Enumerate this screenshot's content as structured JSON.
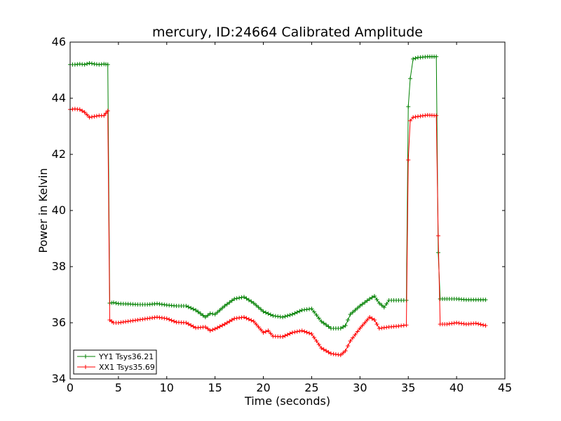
{
  "chart_data": {
    "type": "line",
    "title": "mercury, ID:24664 Calibrated Amplitude",
    "xlabel": "Time (seconds)",
    "ylabel": "Power in Kelvin",
    "xlim": [
      0,
      45
    ],
    "ylim": [
      34,
      46
    ],
    "xticks": [
      "0",
      "5",
      "10",
      "15",
      "20",
      "25",
      "30",
      "35",
      "40",
      "45"
    ],
    "yticks": [
      "34",
      "36",
      "38",
      "40",
      "42",
      "44",
      "46"
    ],
    "grid": false,
    "legend_position": "lower-left",
    "series": [
      {
        "name": "YY1 Tsys36.21",
        "color": "#008000",
        "points": [
          [
            0,
            45.2
          ],
          [
            0.5,
            45.2
          ],
          [
            1,
            45.22
          ],
          [
            1.5,
            45.2
          ],
          [
            2,
            45.25
          ],
          [
            2.5,
            45.22
          ],
          [
            3,
            45.2
          ],
          [
            3.5,
            45.22
          ],
          [
            3.9,
            45.2
          ],
          [
            4.1,
            36.7
          ],
          [
            4.5,
            36.72
          ],
          [
            5,
            36.68
          ],
          [
            6,
            36.67
          ],
          [
            7,
            36.65
          ],
          [
            8,
            36.65
          ],
          [
            9,
            36.68
          ],
          [
            10,
            36.63
          ],
          [
            11,
            36.6
          ],
          [
            12,
            36.6
          ],
          [
            13,
            36.45
          ],
          [
            14,
            36.2
          ],
          [
            14.5,
            36.33
          ],
          [
            15,
            36.3
          ],
          [
            16,
            36.6
          ],
          [
            17,
            36.85
          ],
          [
            18,
            36.92
          ],
          [
            19,
            36.7
          ],
          [
            20,
            36.4
          ],
          [
            21,
            36.25
          ],
          [
            22,
            36.2
          ],
          [
            23,
            36.3
          ],
          [
            24,
            36.45
          ],
          [
            25,
            36.5
          ],
          [
            26,
            36.05
          ],
          [
            27,
            35.8
          ],
          [
            28,
            35.8
          ],
          [
            28.5,
            35.9
          ],
          [
            29,
            36.3
          ],
          [
            30,
            36.6
          ],
          [
            31,
            36.85
          ],
          [
            31.5,
            36.95
          ],
          [
            32,
            36.7
          ],
          [
            32.5,
            36.55
          ],
          [
            33,
            36.8
          ],
          [
            34,
            36.8
          ],
          [
            34.8,
            36.8
          ],
          [
            35,
            43.7
          ],
          [
            35.2,
            44.7
          ],
          [
            35.5,
            45.4
          ],
          [
            36,
            45.45
          ],
          [
            37,
            45.48
          ],
          [
            37.9,
            45.48
          ],
          [
            38.1,
            38.5
          ],
          [
            38.3,
            36.85
          ],
          [
            39,
            36.85
          ],
          [
            40,
            36.85
          ],
          [
            41,
            36.82
          ],
          [
            42,
            36.82
          ],
          [
            43,
            36.82
          ]
        ]
      },
      {
        "name": "XX1 Tsys35.69",
        "color": "#ff0000",
        "points": [
          [
            0,
            43.6
          ],
          [
            0.5,
            43.62
          ],
          [
            1,
            43.6
          ],
          [
            1.5,
            43.5
          ],
          [
            2,
            43.32
          ],
          [
            2.5,
            43.35
          ],
          [
            3,
            43.38
          ],
          [
            3.5,
            43.38
          ],
          [
            3.9,
            43.55
          ],
          [
            4.1,
            36.1
          ],
          [
            4.5,
            36.0
          ],
          [
            5,
            36.0
          ],
          [
            6,
            36.05
          ],
          [
            7,
            36.1
          ],
          [
            8,
            36.15
          ],
          [
            9,
            36.2
          ],
          [
            10,
            36.15
          ],
          [
            11,
            36.02
          ],
          [
            12,
            36.0
          ],
          [
            13,
            35.82
          ],
          [
            14,
            35.85
          ],
          [
            14.5,
            35.72
          ],
          [
            15,
            35.78
          ],
          [
            16,
            35.95
          ],
          [
            17,
            36.15
          ],
          [
            18,
            36.2
          ],
          [
            19,
            36.05
          ],
          [
            20,
            35.65
          ],
          [
            20.5,
            35.72
          ],
          [
            21,
            35.52
          ],
          [
            22,
            35.5
          ],
          [
            23,
            35.65
          ],
          [
            24,
            35.72
          ],
          [
            25,
            35.6
          ],
          [
            26,
            35.1
          ],
          [
            27,
            34.9
          ],
          [
            28,
            34.85
          ],
          [
            28.5,
            35.0
          ],
          [
            29,
            35.35
          ],
          [
            30,
            35.8
          ],
          [
            31,
            36.2
          ],
          [
            31.5,
            36.1
          ],
          [
            32,
            35.8
          ],
          [
            33,
            35.85
          ],
          [
            34,
            35.88
          ],
          [
            34.8,
            35.92
          ],
          [
            35,
            41.8
          ],
          [
            35.2,
            43.2
          ],
          [
            35.5,
            43.32
          ],
          [
            36,
            43.35
          ],
          [
            37,
            43.4
          ],
          [
            37.9,
            43.38
          ],
          [
            38.1,
            39.1
          ],
          [
            38.3,
            35.95
          ],
          [
            39,
            35.95
          ],
          [
            40,
            36.0
          ],
          [
            41,
            35.95
          ],
          [
            42,
            35.98
          ],
          [
            43,
            35.9
          ]
        ]
      }
    ]
  }
}
